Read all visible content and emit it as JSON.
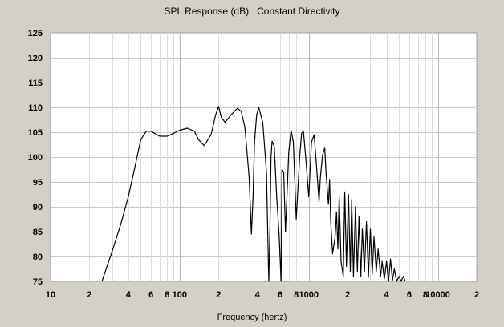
{
  "chart_data": {
    "type": "line",
    "title": "SPL Response (dB)   Constant Directivity",
    "xlabel": "Frequency (hertz)",
    "ylabel": "",
    "x_scale": "log",
    "xlim": [
      10,
      20000
    ],
    "ylim": [
      75,
      125
    ],
    "grid": true,
    "y_ticks": [
      75,
      80,
      85,
      90,
      95,
      100,
      105,
      110,
      115,
      120,
      125
    ],
    "x_tick_labels": [
      {
        "value": 10,
        "label": "10"
      },
      {
        "value": 20,
        "label": "2"
      },
      {
        "value": 40,
        "label": "4"
      },
      {
        "value": 60,
        "label": "6"
      },
      {
        "value": 80,
        "label": "8"
      },
      {
        "value": 100,
        "label": "100"
      },
      {
        "value": 200,
        "label": "2"
      },
      {
        "value": 400,
        "label": "4"
      },
      {
        "value": 600,
        "label": "6"
      },
      {
        "value": 800,
        "label": "8"
      },
      {
        "value": 1000,
        "label": "1000"
      },
      {
        "value": 2000,
        "label": "2"
      },
      {
        "value": 4000,
        "label": "4"
      },
      {
        "value": 6000,
        "label": "6"
      },
      {
        "value": 8000,
        "label": "8"
      },
      {
        "value": 10000,
        "label": "10000"
      },
      {
        "value": 20000,
        "label": "2"
      }
    ],
    "series": [
      {
        "color": "#000000",
        "x": [
          25,
          30,
          35,
          40,
          45,
          50,
          55,
          60,
          70,
          80,
          90,
          100,
          115,
          130,
          140,
          155,
          175,
          190,
          200,
          210,
          225,
          250,
          280,
          300,
          320,
          345,
          360,
          370,
          380,
          395,
          410,
          440,
          470,
          490,
          500,
          510,
          520,
          540,
          565,
          590,
          610,
          620,
          640,
          660,
          700,
          730,
          760,
          780,
          800,
          850,
          880,
          910,
          960,
          1000,
          1050,
          1100,
          1150,
          1200,
          1230,
          1280,
          1330,
          1360,
          1420,
          1450,
          1480,
          1530,
          1600,
          1640,
          1680,
          1720,
          1780,
          1850,
          1900,
          1960,
          2030,
          2100,
          2150,
          2220,
          2300,
          2380,
          2450,
          2530,
          2600,
          2700,
          2800,
          2900,
          3000,
          3100,
          3200,
          3330,
          3450,
          3600,
          3700,
          3850,
          4000,
          4150,
          4300,
          4450,
          4600,
          4800,
          5000,
          5200,
          5400,
          5600
        ],
        "y": [
          75,
          81,
          86.5,
          92,
          98,
          103.5,
          105.2,
          105.2,
          104.2,
          104.2,
          104.8,
          105.4,
          105.8,
          105.2,
          103.5,
          102.3,
          104.5,
          108.5,
          110.2,
          108,
          107,
          108.5,
          109.8,
          109.2,
          106,
          96,
          84.5,
          92,
          103,
          108.5,
          110,
          107,
          97,
          75,
          85,
          100,
          103.2,
          102.2,
          92,
          84,
          75,
          97.5,
          97,
          85,
          101,
          105.4,
          103,
          95,
          87.5,
          100,
          104.8,
          105.2,
          98,
          92,
          103,
          104.5,
          98,
          91,
          96,
          100.5,
          101.8,
          97,
          90.5,
          95.5,
          87,
          80.5,
          84,
          89,
          81.5,
          92,
          79,
          76,
          93,
          78,
          92.5,
          77,
          91.5,
          76,
          90,
          77,
          88,
          76,
          85.5,
          77,
          87,
          76,
          85.5,
          76.5,
          84,
          77,
          81.5,
          76,
          79,
          75.5,
          79,
          75,
          79.5,
          75.2,
          77.5,
          75,
          76,
          75,
          76,
          75
        ]
      }
    ]
  }
}
